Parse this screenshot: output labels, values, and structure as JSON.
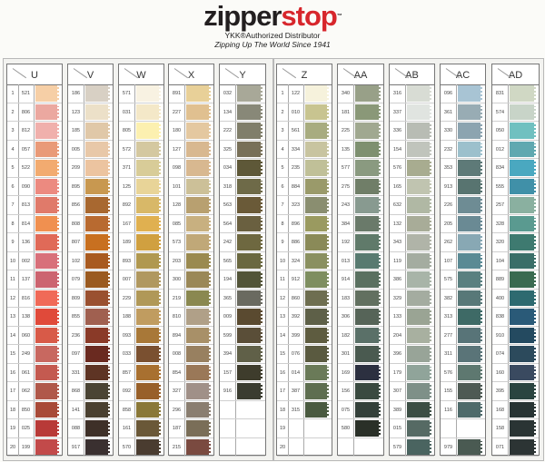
{
  "brand": {
    "name_part1": "zipper",
    "name_part2": "stop",
    "trademark": "™",
    "tagline1": "YKK®Authorized Distributor",
    "tagline2": "Zipping Up The World Since 1941",
    "colors": {
      "dark": "#231f20",
      "red": "#d7262c"
    }
  },
  "row_numbers": [
    "1",
    "2",
    "3",
    "4",
    "5",
    "6",
    "7",
    "8",
    "9",
    "10",
    "11",
    "12",
    "13",
    "14",
    "15",
    "16",
    "17",
    "18",
    "19",
    "20"
  ],
  "columns": [
    {
      "header": "U",
      "show_numbers": true,
      "codes": [
        "521",
        "806",
        "812",
        "057",
        "522",
        "090",
        "813",
        "814",
        "136",
        "002",
        "137",
        "816",
        "138",
        "060",
        "249",
        "061",
        "062",
        "850",
        "025",
        "199"
      ],
      "colors": [
        "#f6cfa6",
        "#eba8a0",
        "#f0b0ac",
        "#e99a78",
        "#f2ab70",
        "#ec8a80",
        "#e07a6a",
        "#f09050",
        "#e06a58",
        "#d8707a",
        "#cc6470",
        "#f06a58",
        "#e04a3a",
        "#d85a48",
        "#c86860",
        "#c45a50",
        "#b0584a",
        "#a84a38",
        "#b83a38",
        "#c24a4a"
      ]
    },
    {
      "header": "V",
      "codes": [
        "186",
        "123",
        "185",
        "005",
        "209",
        "895",
        "856",
        "808",
        "807",
        "102",
        "079",
        "809",
        "855",
        "236",
        "097",
        "331",
        "868",
        "141",
        "088",
        "917"
      ],
      "colors": [
        "#d8d0c4",
        "#ece0c8",
        "#e0c8a8",
        "#e8c8a8",
        "#ecc4a0",
        "#c89850",
        "#a86830",
        "#b86a30",
        "#c87020",
        "#a85a20",
        "#9a5a20",
        "#9a5030",
        "#a06050",
        "#8a3a28",
        "#6a2a20",
        "#5e3424",
        "#4a4434",
        "#4a4030",
        "#3e3028",
        "#3a3030"
      ]
    },
    {
      "header": "W",
      "codes": [
        "571",
        "031",
        "805",
        "572",
        "371",
        "125",
        "892",
        "167",
        "189",
        "893",
        "007",
        "229",
        "188",
        "093",
        "033",
        "857",
        "092",
        "858",
        "161",
        "570"
      ],
      "colors": [
        "#f8f2e2",
        "#f4e8c8",
        "#fcf0b0",
        "#d4c8a0",
        "#d8cc98",
        "#e8d498",
        "#d8b868",
        "#e0b050",
        "#d0a040",
        "#b09850",
        "#b09860",
        "#b09858",
        "#c09c60",
        "#a87838",
        "#7a5030",
        "#a87030",
        "#98602a",
        "#8a7838",
        "#6a5838",
        "#4a3c30"
      ]
    },
    {
      "header": "X",
      "codes": [
        "891",
        "227",
        "180",
        "127",
        "098",
        "101",
        "128",
        "085",
        "573",
        "203",
        "300",
        "219",
        "810",
        "894",
        "008",
        "854",
        "327",
        "296",
        "187",
        "215"
      ],
      "colors": [
        "#e8d098",
        "#e0c090",
        "#e4c8a0",
        "#d8b890",
        "#d8b890",
        "#ccc098",
        "#b8a070",
        "#c8b080",
        "#c0a878",
        "#9a8a50",
        "#9a8858",
        "#8a8850",
        "#b0a088",
        "#a89068",
        "#988060",
        "#9a7858",
        "#a09088",
        "#8a7e70",
        "#7a6e58",
        "#7a4a40"
      ]
    },
    {
      "header": "Y",
      "codes": [
        "032",
        "134",
        "222",
        "325",
        "034",
        "318",
        "563",
        "564",
        "242",
        "565",
        "194",
        "365",
        "009",
        "599",
        "394",
        "157",
        "916",
        "",
        "",
        ""
      ],
      "colors": [
        "#a8a898",
        "#888878",
        "#807e6a",
        "#787058",
        "#5e5838",
        "#6e6a48",
        "#6a5a38",
        "#6a6040",
        "#6e6840",
        "#6a6840",
        "#525438",
        "#6a6a60",
        "#5a4a30",
        "#5a4e38",
        "#606048",
        "#3e3c2c",
        "#3a3c30",
        "",
        "",
        ""
      ]
    },
    {
      "header": "Z",
      "show_numbers": true,
      "codes": [
        "122",
        "010",
        "561",
        "334",
        "235",
        "884",
        "323",
        "896",
        "886",
        "324",
        "912",
        "860",
        "392",
        "399",
        "076",
        "014",
        "387",
        "315",
        "",
        ""
      ],
      "colors": [
        "#f6f2dc",
        "#c8c490",
        "#a8ac80",
        "#c8c4a0",
        "#c0c098",
        "#9a9a6a",
        "#8a8e70",
        "#9a9a60",
        "#8a8a58",
        "#8a9060",
        "#7e8e60",
        "#6e6e50",
        "#5e6048",
        "#5e5c40",
        "#5a5a40",
        "#6a7a58",
        "#5e6e50",
        "#4a5a40",
        "",
        ""
      ]
    },
    {
      "header": "AA",
      "codes": [
        "340",
        "181",
        "225",
        "135",
        "577",
        "275",
        "243",
        "384",
        "192",
        "013",
        "914",
        "183",
        "306",
        "182",
        "301",
        "169",
        "156",
        "075",
        "580",
        ""
      ],
      "colors": [
        "#98a088",
        "#8a9878",
        "#a0a890",
        "#7e9070",
        "#8a9a80",
        "#707e68",
        "#889a90",
        "#6a7a6a",
        "#607a6a",
        "#587a70",
        "#5a7060",
        "#627060",
        "#566458",
        "#5a7068",
        "#4a5a50",
        "#2c3040",
        "#3a4a40",
        "#34403a",
        "#2a3028",
        ""
      ]
    },
    {
      "header": "AB",
      "codes": [
        "316",
        "337",
        "336",
        "154",
        "576",
        "165",
        "632",
        "132",
        "343",
        "119",
        "386",
        "329",
        "133",
        "204",
        "396",
        "179",
        "307",
        "389",
        "015",
        "579"
      ],
      "colors": [
        "#d8dcd4",
        "#e0e4e0",
        "#b8bcb4",
        "#c0c4bc",
        "#a8ac90",
        "#c0c4b0",
        "#b0b8a4",
        "#a8ac98",
        "#b0b4a8",
        "#a4aca0",
        "#a8b4a8",
        "#a4aca0",
        "#9aa494",
        "#a8b0a0",
        "#98a498",
        "#90a49a",
        "#7e9088",
        "#3c4e44",
        "#566a64",
        "#4a6460"
      ]
    },
    {
      "header": "AC",
      "codes": [
        "096",
        "361",
        "330",
        "232",
        "353",
        "913",
        "226",
        "205",
        "262",
        "107",
        "575",
        "382",
        "313",
        "277",
        "311",
        "576",
        "155",
        "116",
        "",
        "979"
      ],
      "colors": [
        "#a8c4d4",
        "#98acb4",
        "#8ca4b0",
        "#9cc0cc",
        "#5e7a78",
        "#587470",
        "#6e8c94",
        "#6a8a94",
        "#88a8b4",
        "#5a8a94",
        "#5a8080",
        "#587878",
        "#3e6a66",
        "#587478",
        "#5a7478",
        "#5e7870",
        "#4e5a54",
        "#4e6a6a",
        "",
        "#4a5a52"
      ]
    },
    {
      "header": "AD",
      "codes": [
        "831",
        "574",
        "050",
        "012",
        "834",
        "555",
        "257",
        "328",
        "320",
        "104",
        "889",
        "400",
        "838",
        "910",
        "074",
        "160",
        "395",
        "168",
        "158",
        "071"
      ],
      "colors": [
        "#d0d8c4",
        "#c8d4c8",
        "#70c0c0",
        "#60a8b0",
        "#4aa8c0",
        "#4090a8",
        "#8ab0a0",
        "#5a9a90",
        "#3e7a70",
        "#3a6e68",
        "#3a6a50",
        "#2e6a70",
        "#2a5a78",
        "#244a60",
        "#2c4a5c",
        "#3a4a60",
        "#2a4440",
        "#283434",
        "#2a3434",
        "#2c3434"
      ]
    }
  ]
}
